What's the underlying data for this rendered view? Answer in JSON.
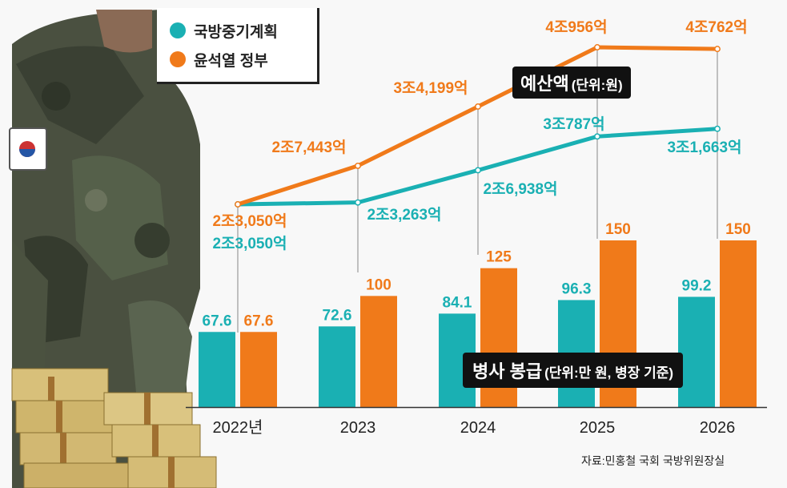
{
  "legend": [
    {
      "name": "국방중기계획",
      "color": "#1ab0b3"
    },
    {
      "name": "윤석열 정부",
      "color": "#f07a1a"
    }
  ],
  "budget_tag": {
    "main": "예산액",
    "unit": "(단위:원)"
  },
  "salary_tag": {
    "main": "병사 봉급",
    "unit": "(단위:만 원, 병장 기준)"
  },
  "source": "자료:민홍철 국회 국방위원장실",
  "chart_data": [
    {
      "type": "line",
      "title": "예산액(단위:원)",
      "categories": [
        "2022년",
        "2023",
        "2024",
        "2025",
        "2026"
      ],
      "series": [
        {
          "name": "국방중기계획",
          "color": "#1ab0b3",
          "values": [
            23050,
            23263,
            26938,
            30787,
            31663
          ],
          "labels": [
            "2조3,050억",
            "2조3,263억",
            "2조6,938억",
            "3조787억",
            "3조1,663억"
          ]
        },
        {
          "name": "윤석열 정부",
          "color": "#f07a1a",
          "values": [
            23050,
            27443,
            34199,
            40956,
            40762
          ],
          "labels": [
            "2조3,050억",
            "2조7,443억",
            "3조4,199억",
            "4조956억",
            "4조762억"
          ]
        }
      ]
    },
    {
      "type": "bar",
      "title": "병사 봉급(단위:만 원, 병장 기준)",
      "categories": [
        "2022년",
        "2023",
        "2024",
        "2025",
        "2026"
      ],
      "series": [
        {
          "name": "국방중기계획",
          "color": "#1ab0b3",
          "values": [
            67.6,
            72.6,
            84.1,
            96.3,
            99.2
          ]
        },
        {
          "name": "윤석열 정부",
          "color": "#f07a1a",
          "values": [
            67.6,
            100,
            125,
            150,
            150
          ]
        }
      ]
    }
  ]
}
